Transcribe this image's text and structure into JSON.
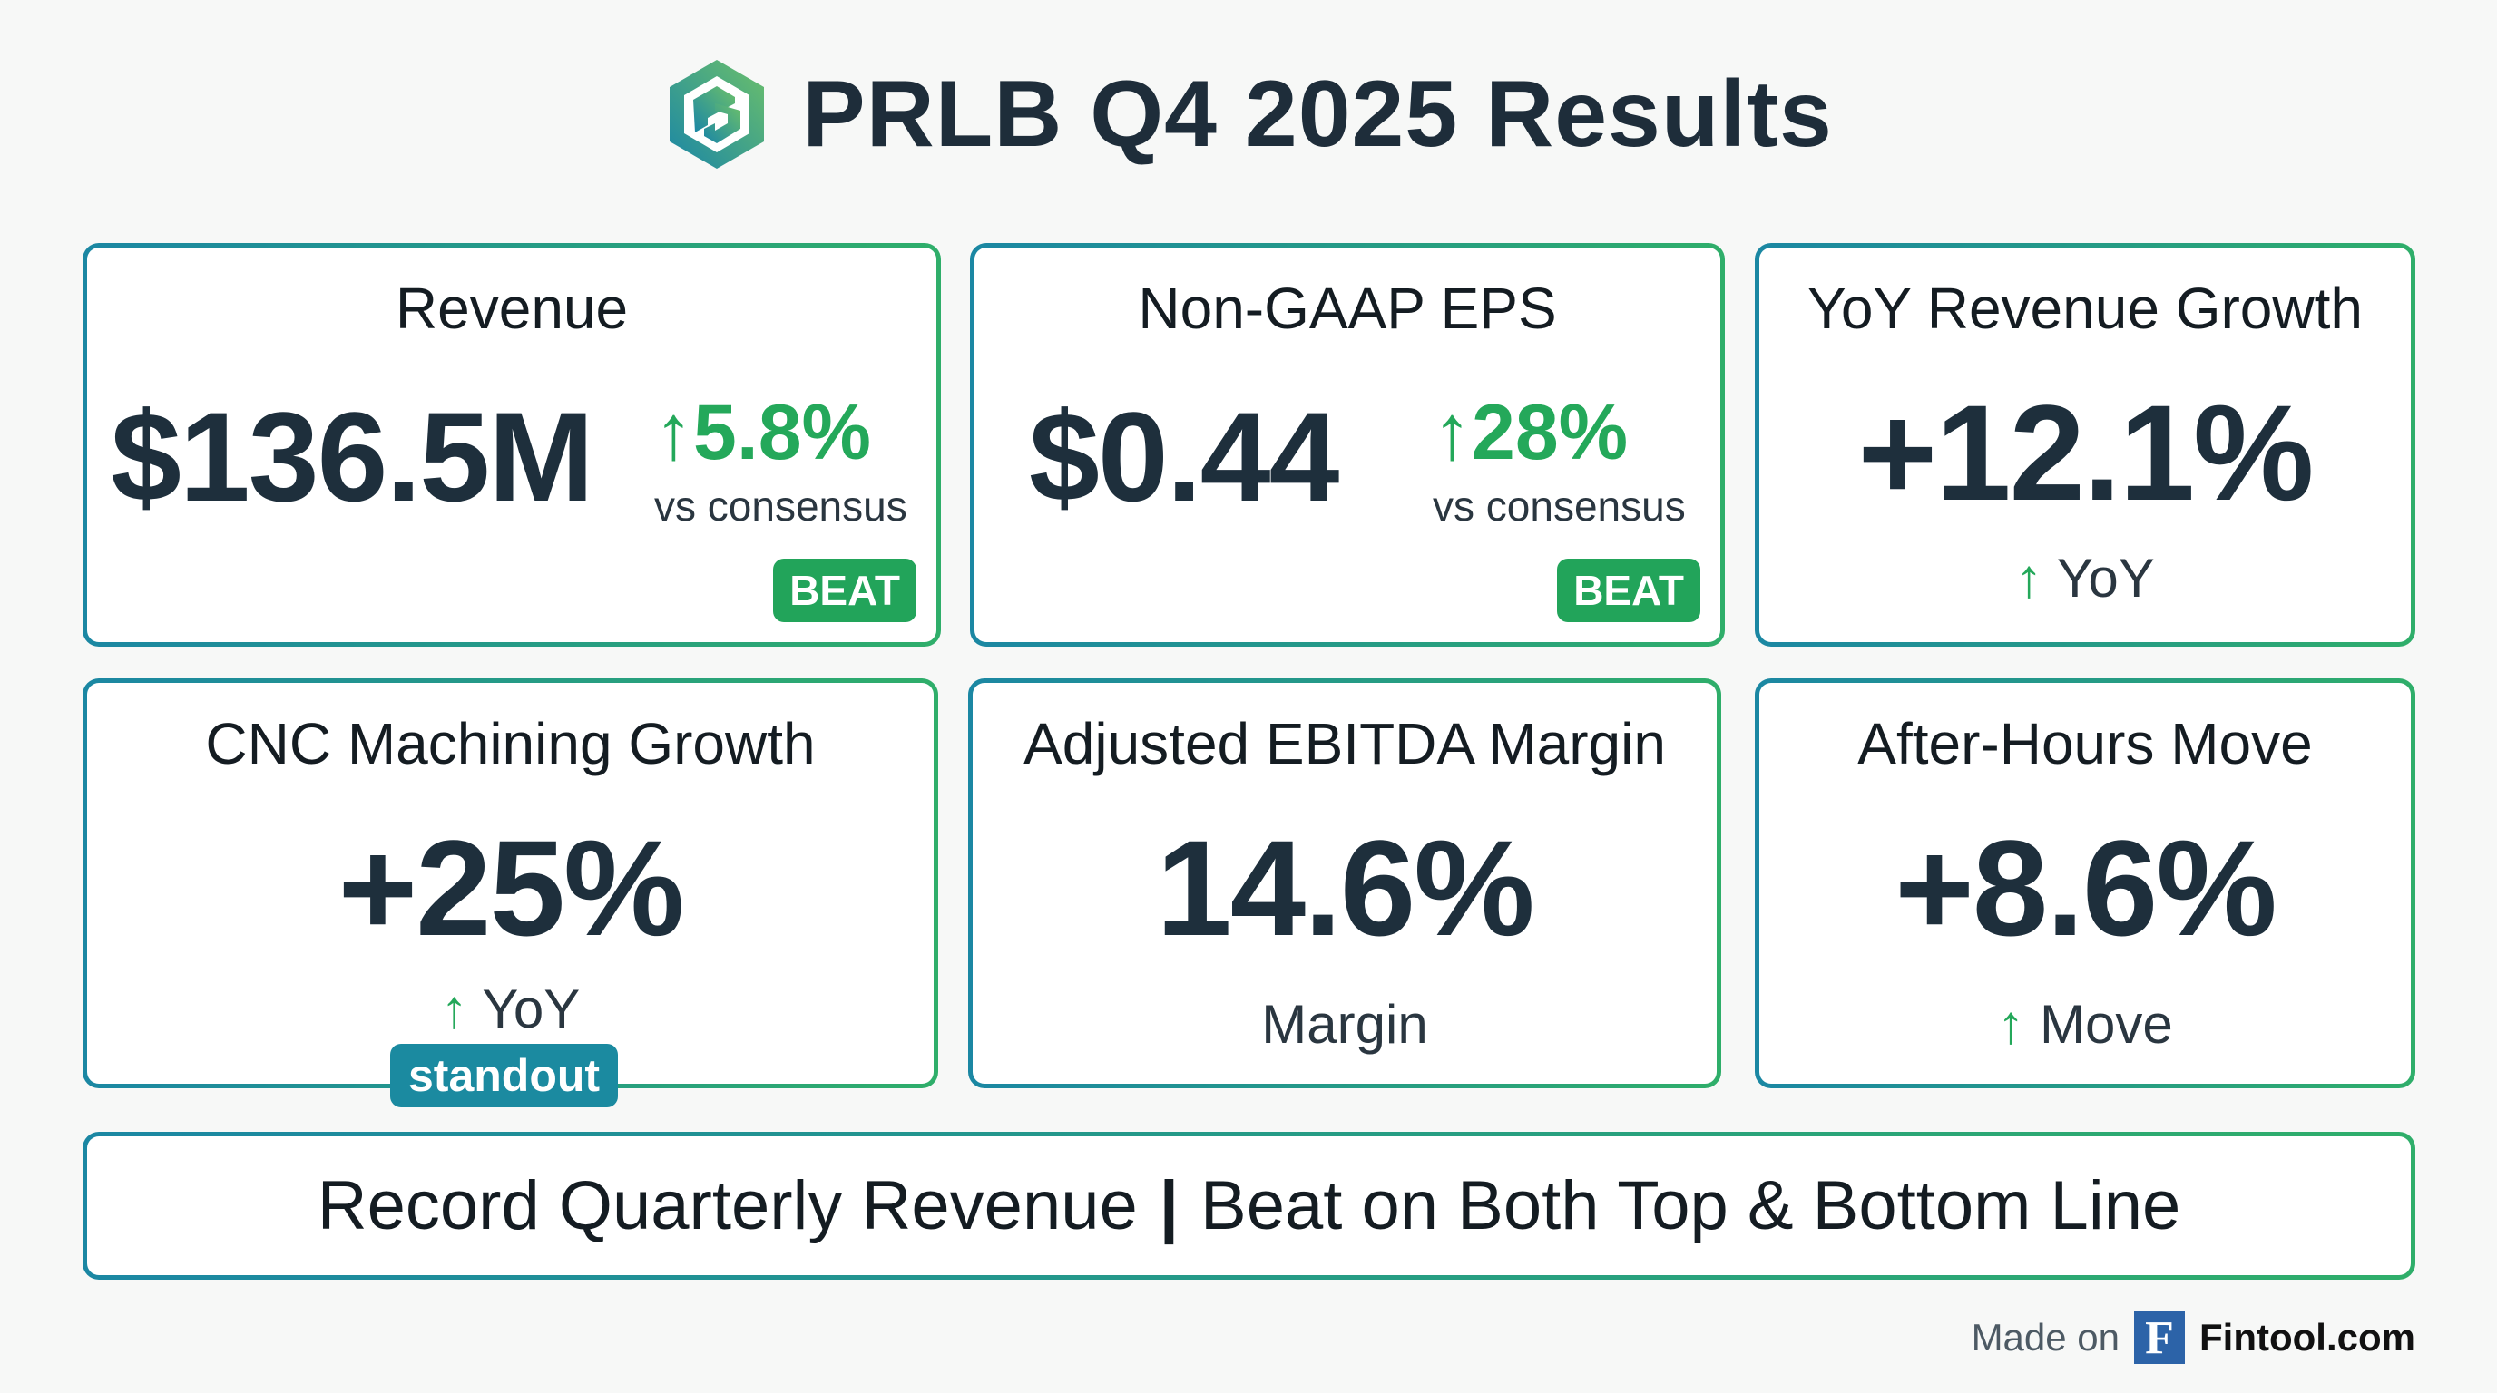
{
  "header": {
    "title": "PRLB Q4 2025 Results",
    "logo": "prlb-hexagon-logo"
  },
  "cards": [
    {
      "title": "Revenue",
      "value": "$136.5M",
      "change": "5.8%",
      "change_label": "vs consensus",
      "badge": "BEAT"
    },
    {
      "title": "Non-GAAP EPS",
      "value": "$0.44",
      "change": "28%",
      "change_label": "vs consensus",
      "badge": "BEAT"
    },
    {
      "title": "YoY Revenue Growth",
      "value": "+12.1%",
      "sub": "YoY"
    },
    {
      "title": "CNC Machining Growth",
      "value": "+25%",
      "sub": "YoY",
      "badge": "standout"
    },
    {
      "title": "Adjusted EBITDA Margin",
      "value": "14.6%",
      "sub": "Margin"
    },
    {
      "title": "After-Hours Move",
      "value": "+8.6%",
      "sub": "Move"
    }
  ],
  "banner": {
    "left": "Record Quarterly Revenue",
    "separator": "|",
    "right": "Beat on Both Top & Bottom Line"
  },
  "footer": {
    "made_on": "Made on",
    "logo_letter": "F",
    "brand": "Fintool.com"
  },
  "colors": {
    "green": "#24a85a",
    "teal": "#1b87a3",
    "text": "#1e2f3c"
  },
  "icons": {
    "arrow": "arrow-up-icon"
  }
}
